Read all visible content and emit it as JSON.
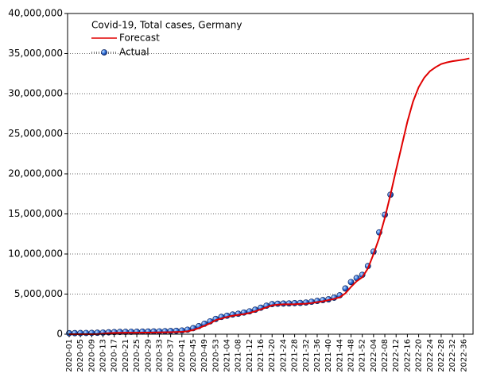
{
  "chart_data": {
    "type": "line",
    "title": "Covid-19, Total cases, Germany",
    "categories": [
      "2020-01",
      null,
      "2020-05",
      null,
      "2020-09",
      null,
      "2020-13",
      null,
      "2020-17",
      null,
      "2020-21",
      null,
      "2020-25",
      null,
      "2020-29",
      null,
      "2020-33",
      null,
      "2020-37",
      null,
      "2020-41",
      null,
      "2020-45",
      null,
      "2020-49",
      null,
      "2020-53",
      null,
      "2021-04",
      null,
      "2021-08",
      null,
      "2021-12",
      null,
      "2021-16",
      null,
      "2021-20",
      null,
      "2021-24",
      null,
      "2021-28",
      null,
      "2021-32",
      null,
      "2021-36",
      null,
      "2021-40",
      null,
      "2021-44",
      null,
      "2021-48",
      null,
      "2021-52",
      null,
      "2022-04",
      null,
      "2022-08",
      null,
      "2022-12",
      null,
      "2022-16",
      null,
      "2022-20",
      null,
      "2022-24",
      null,
      "2022-28",
      null,
      "2022-32",
      null,
      "2022-36",
      null
    ],
    "series": [
      {
        "name": "Forecast",
        "color": "#e00000",
        "style": "line",
        "values": [
          0,
          0,
          0,
          0,
          0,
          10000,
          60000,
          120000,
          160000,
          170000,
          180000,
          185000,
          190000,
          195000,
          200000,
          210000,
          220000,
          230000,
          250000,
          270000,
          300000,
          360000,
          520000,
          750000,
          1050000,
          1350000,
          1750000,
          1950000,
          2150000,
          2300000,
          2400000,
          2500000,
          2650000,
          2850000,
          3100000,
          3350000,
          3600000,
          3680000,
          3720000,
          3730000,
          3740000,
          3770000,
          3800000,
          3880000,
          4000000,
          4100000,
          4250000,
          4400000,
          4600000,
          5100000,
          5900000,
          6600000,
          7100000,
          8200000,
          10000000,
          12000000,
          14500000,
          17400000,
          20500000,
          23500000,
          26500000,
          29000000,
          30800000,
          32000000,
          32800000,
          33300000,
          33700000,
          33900000,
          34050000,
          34150000,
          34250000,
          34400000
        ]
      },
      {
        "name": "Actual",
        "color": "#1f5fd0",
        "style": "points",
        "values": [
          120000,
          130000,
          140000,
          150000,
          160000,
          180000,
          200000,
          230000,
          260000,
          280000,
          290000,
          300000,
          310000,
          320000,
          330000,
          340000,
          350000,
          370000,
          390000,
          420000,
          460000,
          560000,
          750000,
          1000000,
          1300000,
          1600000,
          1900000,
          2150000,
          2300000,
          2450000,
          2550000,
          2700000,
          2850000,
          3050000,
          3300000,
          3550000,
          3750000,
          3800000,
          3820000,
          3840000,
          3870000,
          3900000,
          3950000,
          4050000,
          4150000,
          4250000,
          4350000,
          4550000,
          4850000,
          5700000,
          6500000,
          7000000,
          7400000,
          8500000,
          10300000,
          12700000,
          14900000,
          17400000,
          null,
          null,
          null,
          null,
          null,
          null,
          null,
          null,
          null,
          null,
          null,
          null,
          null,
          null
        ]
      }
    ],
    "ylim": [
      0,
      40000000
    ],
    "yticks": [
      0,
      {
        "value": 5000000,
        "label": "5,000,000"
      },
      {
        "value": 10000000,
        "label": "10,000,000"
      },
      {
        "value": 15000000,
        "label": "15,000,000"
      },
      {
        "value": 20000000,
        "label": "20,000,000"
      },
      {
        "value": 25000000,
        "label": "25,000,000"
      },
      {
        "value": 30000000,
        "label": "30,000,000"
      },
      {
        "value": 35000000,
        "label": "35,000,000"
      },
      {
        "value": 40000000,
        "label": "40,000,000"
      }
    ],
    "grid": true
  }
}
